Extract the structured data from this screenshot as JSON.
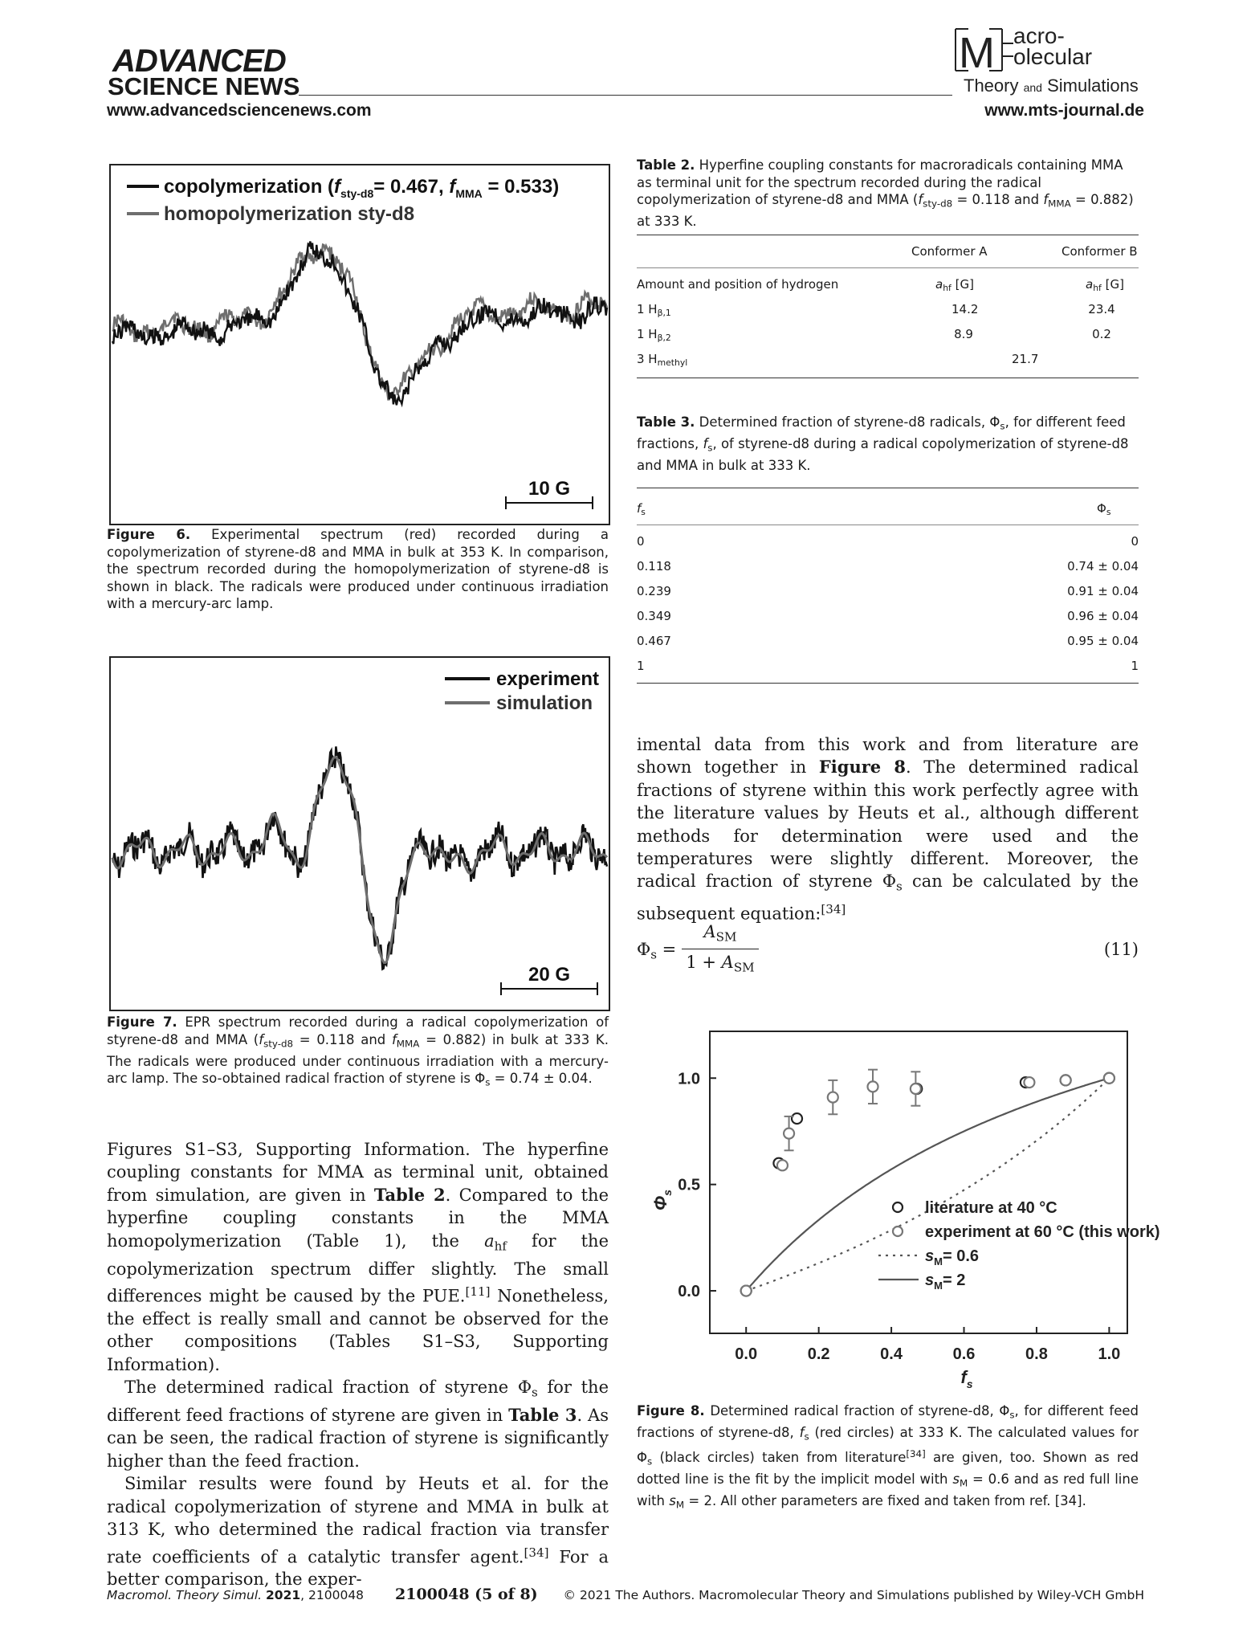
{
  "header": {
    "brand_line1": "ADVANCED",
    "brand_line2": "SCIENCE NEWS",
    "url_left": "www.advancedsciencenews.com",
    "url_right": "www.mts-journal.de",
    "journal_logo": {
      "line1": "acro-",
      "line2": "olecular",
      "line3a": "Theory",
      "line3b": "and",
      "line3c": "Simulations",
      "letter": "M"
    }
  },
  "figure6": {
    "legend": [
      {
        "label": "copolymerization (f",
        "full": "copolymerization (fsty-d8 = 0.467, fMMA = 0.533)",
        "color": "#111111"
      },
      {
        "label": "homopolymerization sty-d8",
        "color": "#6e6e6e"
      }
    ],
    "legend_parts": {
      "a": "copolymerization (",
      "f1": "f",
      "s1": "sty-d8",
      "m1": "= 0.467, ",
      "f2": "f",
      "s2": "MMA",
      "m2": " = 0.533)"
    },
    "scale_label": "10 G",
    "caption_label": "Figure 6.",
    "caption_text": "Experimental spectrum (red) recorded during a copolymerization of styrene-d8 and MMA in bulk at 353 K. In comparison, the spectrum recorded during the homopolymerization of styrene-d8 is shown in black. The radicals were produced under continuous irradiation with a mercury-arc lamp."
  },
  "figure7": {
    "legend": [
      {
        "label": "experiment",
        "color": "#111111"
      },
      {
        "label": "simulation",
        "color": "#6e6e6e"
      }
    ],
    "scale_label": "20 G",
    "caption_label": "Figure 7.",
    "caption_a": "EPR spectrum recorded during a radical copolymerization of styrene-d8 and MMA (",
    "caption_f1": "f",
    "caption_s1": "sty-d8",
    "caption_b": " = 0.118 and ",
    "caption_f2": "f",
    "caption_s2": "MMA",
    "caption_c": " = 0.882) in bulk at 333 K. The radicals were produced under continuous irradiation with a mercury-arc lamp. The so-obtained radical fraction of styrene is Φ",
    "caption_s3": "s",
    "caption_d": " = 0.74 ± 0.04."
  },
  "table2": {
    "caption_label": "Table 2.",
    "caption_a": "Hyperfine coupling constants for macroradicals containing MMA as terminal unit for the spectrum recorded during the radical copolymerization of styrene-d8 and MMA (",
    "caption_f1": "f",
    "caption_s1": "sty-d8",
    "caption_b": " = 0.118 and ",
    "caption_f2": "f",
    "caption_s2": "MMA",
    "caption_c": " = 0.882) at 333 K.",
    "col_a": "Conformer A",
    "col_b": "Conformer B",
    "row0": {
      "label": "Amount and position of hydrogen",
      "a": "a",
      "a_sub": "hf",
      "a_unit": " [G]",
      "b": "a",
      "b_sub": "hf",
      "b_unit": " [G]"
    },
    "rows": [
      {
        "label": "1 H",
        "sub": "β,1",
        "a": "14.2",
        "b": "23.4"
      },
      {
        "label": "1 H",
        "sub": "β,2",
        "a": "8.9",
        "b": "0.2"
      },
      {
        "label": "3 H",
        "sub": "methyl",
        "span": "21.7"
      }
    ]
  },
  "table3": {
    "caption_label": "Table 3.",
    "caption_a": "Determined fraction of styrene-d8 radicals, Φ",
    "caption_s1": "s",
    "caption_b": ", for different feed fractions, ",
    "caption_f": "f",
    "caption_s2": "s",
    "caption_c": ", of styrene-d8 during a radical copolymerization of styrene-d8 and MMA in bulk at 333 K.",
    "col_f": "f",
    "col_f_sub": "s",
    "col_phi": "Φ",
    "col_phi_sub": "s",
    "rows": [
      {
        "f": "0",
        "phi": "0"
      },
      {
        "f": "0.118",
        "phi": "0.74 ± 0.04"
      },
      {
        "f": "0.239",
        "phi": "0.91 ± 0.04"
      },
      {
        "f": "0.349",
        "phi": "0.96 ± 0.04"
      },
      {
        "f": "0.467",
        "phi": "0.95 ± 0.04"
      },
      {
        "f": "1",
        "phi": "1"
      }
    ]
  },
  "right_text": {
    "p1": "imental data from this work and from literature are shown together in ",
    "p1_bold": "Figure 8",
    "p1_b": ". The determined radical fractions of styrene within this work perfectly agree with the literature values by Heuts et al., although different methods for determination were used and the temperatures were slightly different. Moreover, the radical fraction of styrene Φ",
    "p1_sub": "s",
    "p1_c": " can be calculated by the subsequent equation:",
    "p1_ref": "[34]"
  },
  "equation": {
    "lhs": "Φ",
    "lhs_sub": "s",
    "eq": "=",
    "num": "A",
    "num_sub": "SM",
    "den_a": "1 + ",
    "den": "A",
    "den_sub": "SM",
    "number": "(11)"
  },
  "chart_data": {
    "type": "scatter",
    "xlabel": "f",
    "xlabel_sub": "s",
    "ylabel": "Φ",
    "ylabel_sub": "s",
    "xlim": [
      -0.1,
      1.05
    ],
    "ylim": [
      -0.2,
      1.22
    ],
    "xticks": [
      "0.0",
      "0.2",
      "0.4",
      "0.6",
      "0.8",
      "1.0"
    ],
    "xtick_values": [
      0.0,
      0.2,
      0.4,
      0.6,
      0.8,
      1.0
    ],
    "yticks": [
      "0.0",
      "0.5",
      "1.0"
    ],
    "ytick_values": [
      0.0,
      0.5,
      1.0
    ],
    "series": [
      {
        "name": "literature at 40 °C",
        "kind": "points",
        "color": "#222222",
        "x": [
          0.0,
          0.09,
          0.14,
          0.47,
          0.77,
          0.88,
          1.0
        ],
        "y": [
          0.0,
          0.6,
          0.81,
          0.95,
          0.98,
          0.99,
          1.0
        ]
      },
      {
        "name": "experiment at 60 °C (this work)",
        "kind": "points_err",
        "color": "#777777",
        "x": [
          0.0,
          0.1,
          0.118,
          0.239,
          0.349,
          0.467,
          0.78,
          0.88,
          1.0
        ],
        "y": [
          0.0,
          0.59,
          0.74,
          0.91,
          0.96,
          0.95,
          0.98,
          0.99,
          1.0
        ],
        "err": [
          0,
          0,
          0.08,
          0.08,
          0.08,
          0.08,
          0,
          0,
          0
        ]
      },
      {
        "name": "s",
        "name_sub": "M",
        "name_rest": "= 0.6",
        "kind": "dotted",
        "color": "#555555",
        "sM": 0.6
      },
      {
        "name": "s",
        "name_sub": "M",
        "name_rest": "= 2",
        "kind": "solid",
        "color": "#555555",
        "sM": 2
      }
    ],
    "caption_label": "Figure 8.",
    "caption_a": "Determined radical fraction of styrene-d8, Φ",
    "caption_s1": "s",
    "caption_b": ", for different feed fractions of styrene-d8, ",
    "caption_f": "f",
    "caption_s2": "s",
    "caption_c": " (red circles) at 333 K. The calculated values for Φ",
    "caption_s3": "s",
    "caption_d": " (black circles) taken from literature",
    "caption_ref": "[34]",
    "caption_e": " are given, too. Shown as red dotted line is the fit by the implicit model with ",
    "caption_sm1": "s",
    "caption_sm1_sub": "M",
    "caption_f2": " = 0.6 and as red full line with ",
    "caption_sm2": "s",
    "caption_sm2_sub": "M",
    "caption_g": " = 2. All other parameters are fixed and taken from ref. [34]."
  },
  "left_text": {
    "p1_a": "Figures S1–S3, Supporting Information. The hyperfine coupling constants for MMA as terminal unit, obtained from simulation, are given in ",
    "p1_bold": "Table 2",
    "p1_b": ". Compared to the hyperfine coupling constants in the MMA homopolymerization (Table 1), the ",
    "p1_a_hf": "a",
    "p1_a_hf_sub": "hf",
    "p1_c": " for the copolymerization spectrum differ slightly. The small differences might be caused by the PUE.",
    "p1_ref": "[11]",
    "p1_d": " Nonetheless, the effect is really small and cannot be observed for the other compositions (Tables S1–S3, Supporting Information).",
    "p2_a": "The determined radical fraction of styrene Φ",
    "p2_sub": "s",
    "p2_b": " for the different feed fractions of styrene are given in ",
    "p2_bold": "Table 3",
    "p2_c": ". As can be seen, the radical fraction of styrene is significantly higher than the feed fraction.",
    "p3_a": "Similar results were found by Heuts et al. for the radical copolymerization of styrene and MMA in bulk at 313 K, who determined the radical fraction via transfer rate coefficients of a catalytic transfer agent.",
    "p3_ref": "[34]",
    "p3_b": " For a better comparison, the exper-"
  },
  "footer": {
    "journal": "Macromol. Theory Simul.",
    "year": "2021",
    "id": ", 2100048",
    "page": "2100048 (5 of 8)",
    "copyright": "© 2021 The Authors. Macromolecular Theory and Simulations published by Wiley-VCH GmbH"
  }
}
